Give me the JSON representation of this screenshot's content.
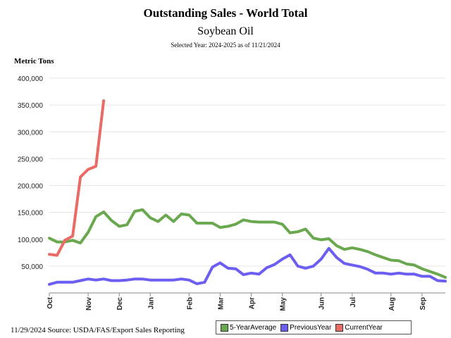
{
  "header": {
    "title": "Outstanding Sales - World Total",
    "subtitle": "Soybean Oil",
    "selected_year": "Selected Year: 2024-2025 as of 11/21/2024",
    "unit_label": "Metric Tons"
  },
  "footer": {
    "source": "11/29/2024 Source: USDA/FAS/Export Sales Reporting"
  },
  "chart_data": {
    "type": "line",
    "ylabel": "Metric Tons",
    "ylim": [
      0,
      400000
    ],
    "yticks": [
      50000,
      100000,
      150000,
      200000,
      250000,
      300000,
      350000,
      400000
    ],
    "ytick_labels": [
      "50,000",
      "100,000",
      "150,000",
      "200,000",
      "250,000",
      "300,000",
      "350,000",
      "400,000"
    ],
    "months": [
      "Oct",
      "Nov",
      "Dec",
      "Jan",
      "Feb",
      "Mar",
      "Apr",
      "May",
      "Jun",
      "Jul",
      "Aug",
      "Sep"
    ],
    "month_week_index": [
      0,
      5,
      9,
      13,
      18,
      22,
      26,
      30,
      35,
      39,
      44,
      48
    ],
    "grid": true,
    "legend_position": "bottom-right",
    "series": [
      {
        "name": "5-YearAverage",
        "color": "#6aa84f",
        "values": [
          102000,
          95000,
          95000,
          98000,
          93000,
          113000,
          142000,
          151000,
          135000,
          124000,
          127000,
          152000,
          155000,
          140000,
          133000,
          145000,
          133000,
          147000,
          145000,
          130000,
          130000,
          130000,
          122000,
          124000,
          128000,
          136000,
          133000,
          132000,
          132000,
          132000,
          128000,
          112000,
          114000,
          119000,
          102000,
          99000,
          101000,
          88000,
          81000,
          84000,
          81000,
          77000,
          71000,
          66000,
          61000,
          60000,
          54000,
          52000,
          45000,
          40000,
          35000,
          29000
        ]
      },
      {
        "name": "PreviousYear",
        "color": "#6d5ef2",
        "values": [
          16000,
          20000,
          20000,
          20000,
          23000,
          26000,
          24000,
          26000,
          23000,
          23000,
          24000,
          26000,
          26000,
          24000,
          24000,
          24000,
          24000,
          26000,
          24000,
          17000,
          20000,
          48000,
          56000,
          46000,
          45000,
          34000,
          37000,
          35000,
          47000,
          53000,
          63000,
          71000,
          50000,
          46000,
          50000,
          63000,
          83000,
          66000,
          55000,
          52000,
          49000,
          44000,
          37000,
          37000,
          35000,
          37000,
          35000,
          35000,
          31000,
          31000,
          23000,
          22000
        ]
      },
      {
        "name": "CurrentYear",
        "color": "#ea6b66",
        "values": [
          72000,
          70000,
          98000,
          106000,
          216000,
          230000,
          236000,
          358000
        ]
      }
    ]
  }
}
